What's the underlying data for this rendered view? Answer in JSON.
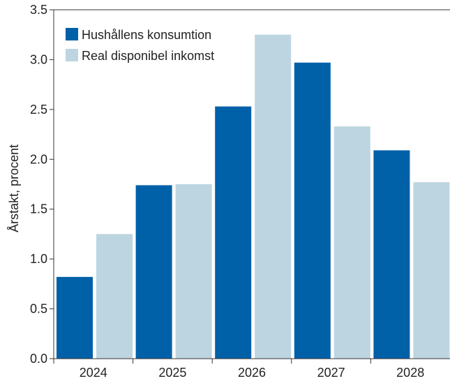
{
  "chart_data": {
    "type": "bar",
    "title": "",
    "xlabel": "",
    "ylabel": "Årstakt, procent",
    "ylim": [
      0,
      3.5
    ],
    "yticks": [
      "0.0",
      "0.5",
      "1.0",
      "1.5",
      "2.0",
      "2.5",
      "3.0",
      "3.5"
    ],
    "categories": [
      "2024",
      "2025",
      "2026",
      "2027",
      "2028"
    ],
    "series": [
      {
        "name": "Hushållens konsumtion",
        "color": "#0060a8",
        "values": [
          0.82,
          1.74,
          2.53,
          2.97,
          2.09
        ]
      },
      {
        "name": "Real disponibel inkomst",
        "color": "#bdd5e1",
        "values": [
          1.25,
          1.75,
          3.25,
          2.33,
          1.77
        ]
      }
    ],
    "grid": false,
    "legend_position": "top-left"
  }
}
